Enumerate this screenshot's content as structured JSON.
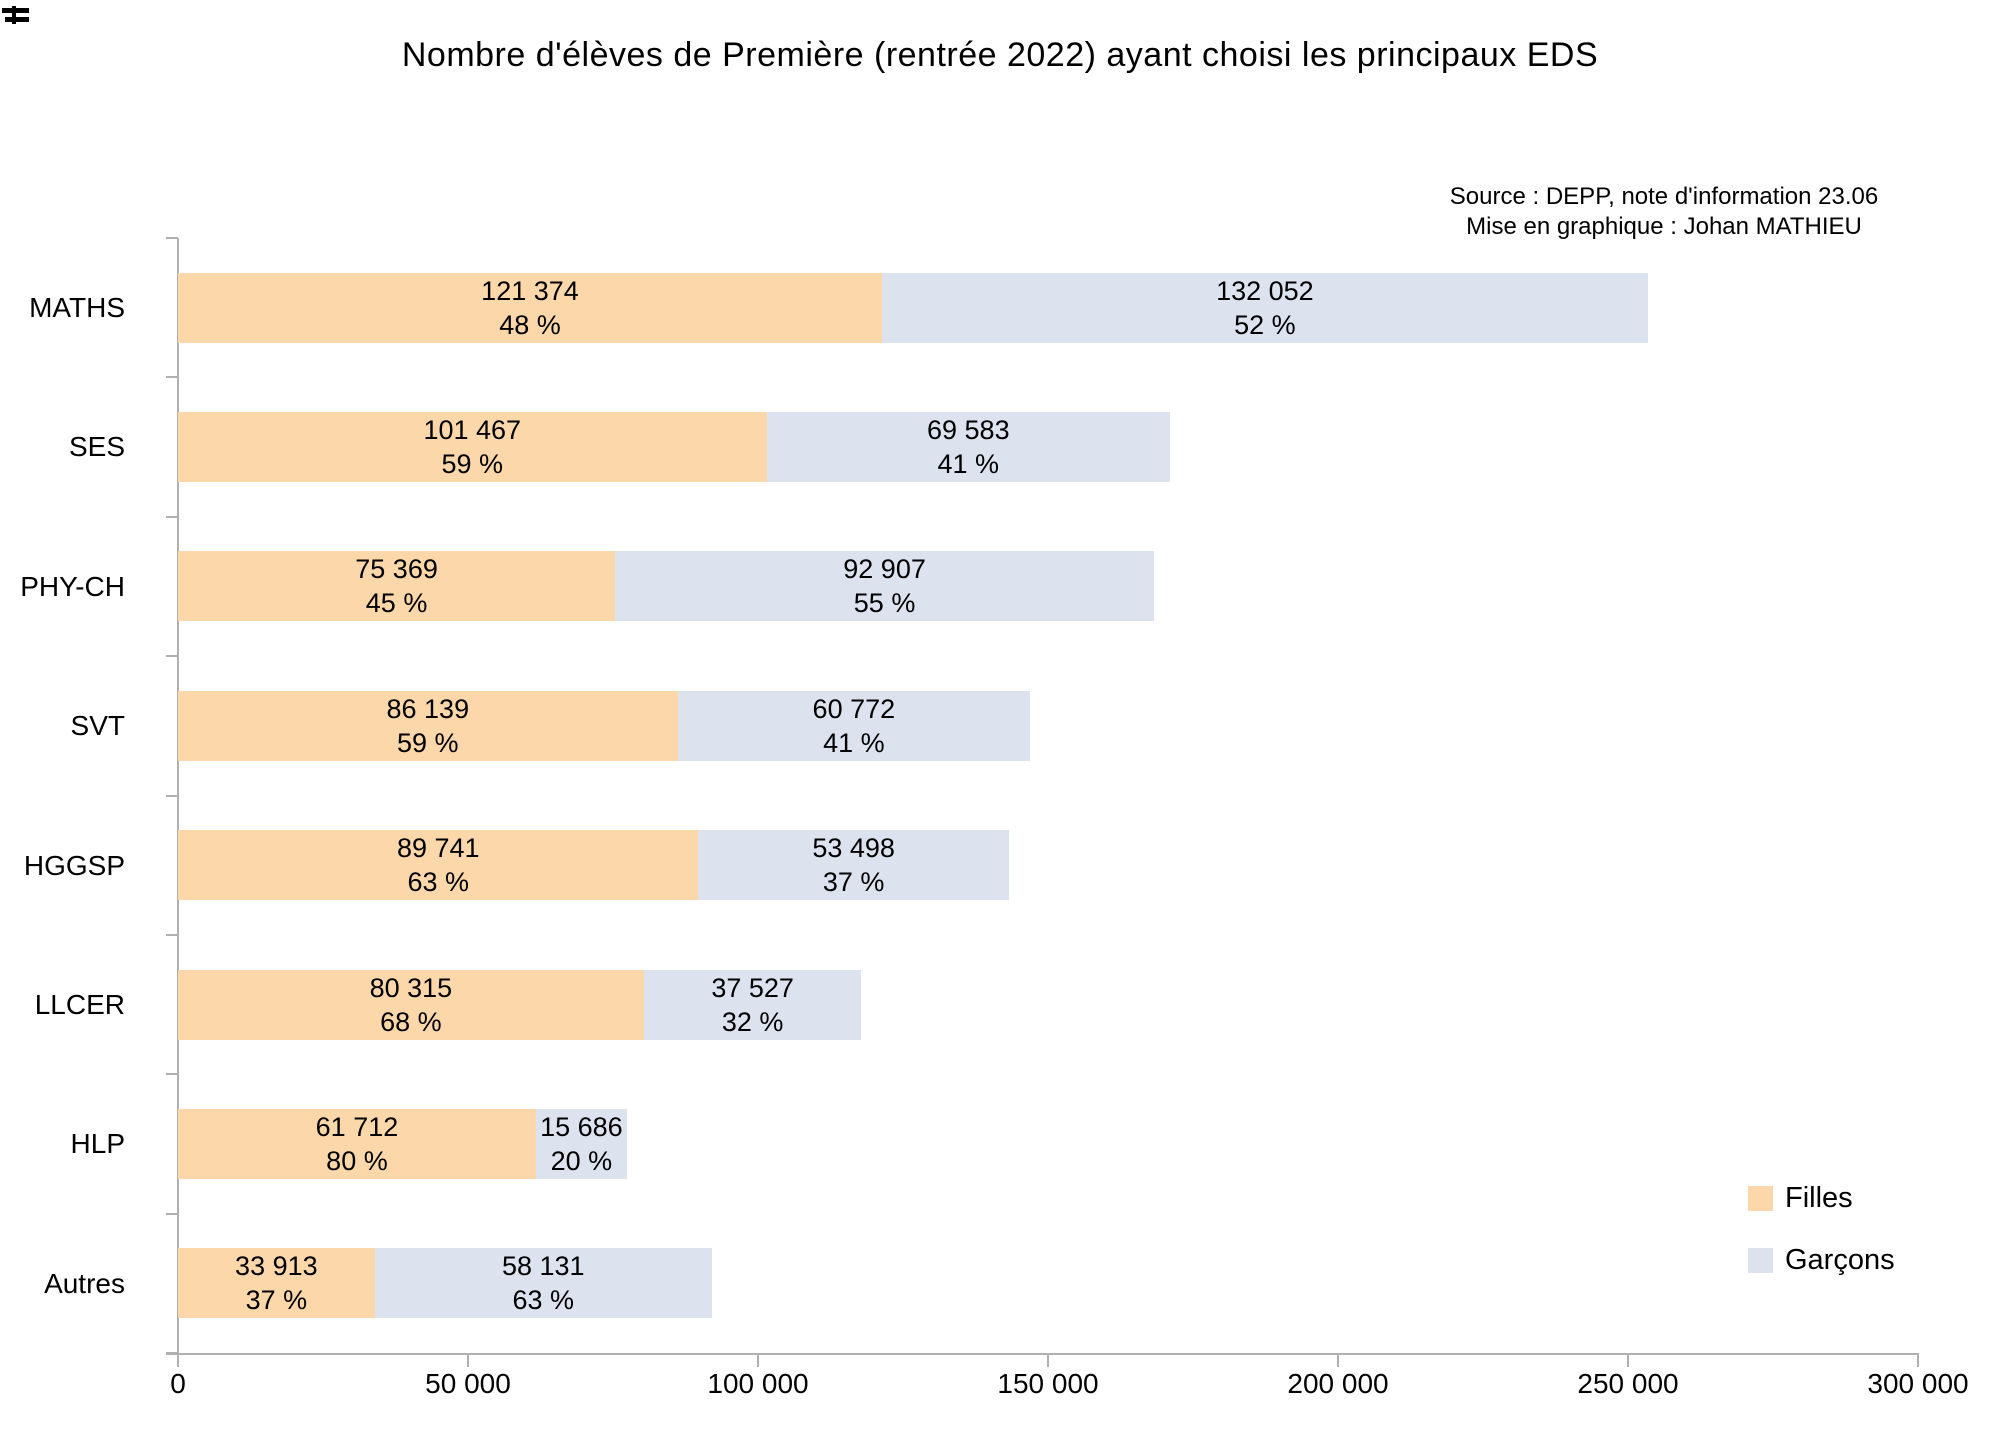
{
  "title": "Nombre d'élèves de Première (rentrée 2022) ayant choisi les principaux EDS",
  "source_line1": "Source : DEPP, note d'information 23.06",
  "source_line2": "Mise en graphique : Johan MATHIEU",
  "colors": {
    "filles": "#FCD7A9",
    "garcons": "#DCE2EE",
    "axis": "#b0b0b0",
    "text": "#000000",
    "background": "#ffffff"
  },
  "legend": [
    {
      "label": "Filles",
      "color": "#FCD7A9"
    },
    {
      "label": "Garçons",
      "color": "#DCE2EE"
    }
  ],
  "axis": {
    "tick_labels": [
      "0",
      "50 000",
      "100 000",
      "150 000",
      "200 000",
      "250 000",
      "300 000"
    ],
    "tick_values": [
      0,
      50000,
      100000,
      150000,
      200000,
      250000,
      300000
    ]
  },
  "chart_data": {
    "type": "bar",
    "orientation": "horizontal",
    "stacked": true,
    "title": "Nombre d'élèves de Première (rentrée 2022) ayant choisi les principaux EDS",
    "categories": [
      "MATHS",
      "SES",
      "PHY-CH",
      "SVT",
      "HGGSP",
      "LLCER",
      "HLP",
      "Autres"
    ],
    "series": [
      {
        "name": "Filles",
        "color": "#FCD7A9",
        "values": [
          121374,
          101467,
          75369,
          86139,
          89741,
          80315,
          61712,
          33913
        ],
        "value_labels": [
          "121 374",
          "101 467",
          "75 369",
          "86 139",
          "89 741",
          "80 315",
          "61 712",
          "33 913"
        ],
        "percent_labels": [
          "48 %",
          "59 %",
          "45 %",
          "59 %",
          "63 %",
          "68 %",
          "80 %",
          "37 %"
        ]
      },
      {
        "name": "Garçons",
        "color": "#DCE2EE",
        "values": [
          132052,
          69583,
          92907,
          60772,
          53498,
          37527,
          15686,
          58131
        ],
        "value_labels": [
          "132 052",
          "69 583",
          "92 907",
          "60 772",
          "53 498",
          "37 527",
          "15 686",
          "58 131"
        ],
        "percent_labels": [
          "52 %",
          "41 %",
          "55 %",
          "41 %",
          "37 %",
          "32 %",
          "20 %",
          "63 %"
        ]
      }
    ],
    "xlabel": "",
    "ylabel": "",
    "xlim": [
      0,
      300000
    ],
    "x_ticks": [
      0,
      50000,
      100000,
      150000,
      200000,
      250000,
      300000
    ],
    "grid": false,
    "legend_position": "right-lower",
    "bar_labels": "value and percent centered inside each segment"
  }
}
